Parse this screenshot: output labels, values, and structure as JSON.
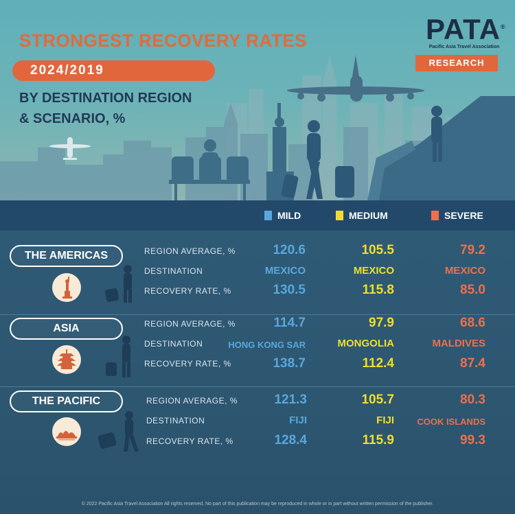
{
  "title": "STRONGEST RECOVERY RATES",
  "period": "2024/2019",
  "subtitle_line1": "BY DESTINATION REGION",
  "subtitle_line2": "& SCENARIO, %",
  "logo": {
    "word": "PATA",
    "registered": "®",
    "org": "Pacific Asia Travel Association",
    "badge": "RESEARCH"
  },
  "legend": {
    "mild": "MILD",
    "medium": "MEDIUM",
    "severe": "SEVERE"
  },
  "colors": {
    "mild": "#59a7dc",
    "medium": "#f2de2a",
    "severe": "#ef6f4c",
    "accent": "#e2663c"
  },
  "row_labels": {
    "avg": "REGION AVERAGE, %",
    "dest": "DESTINATION",
    "rate": "RECOVERY RATE, %"
  },
  "regions": [
    {
      "name": "THE AMERICAS",
      "icon": "statue-of-liberty-icon",
      "mild": {
        "avg": "120.6",
        "dest": "MEXICO",
        "rate": "130.5"
      },
      "medium": {
        "avg": "105.5",
        "dest": "MEXICO",
        "rate": "115.8"
      },
      "severe": {
        "avg": "79.2",
        "dest": "MEXICO",
        "rate": "85.0"
      }
    },
    {
      "name": "ASIA",
      "icon": "pagoda-icon",
      "mild": {
        "avg": "114.7",
        "dest": "HONG KONG SAR",
        "rate": "138.7"
      },
      "medium": {
        "avg": "97.9",
        "dest": "MONGOLIA",
        "rate": "112.4"
      },
      "severe": {
        "avg": "68.6",
        "dest": "MALDIVES",
        "rate": "87.4"
      }
    },
    {
      "name": "THE PACIFIC",
      "icon": "opera-house-icon",
      "mild": {
        "avg": "121.3",
        "dest": "FIJI",
        "rate": "128.4"
      },
      "medium": {
        "avg": "105.7",
        "dest": "FIJI",
        "rate": "115.9"
      },
      "severe": {
        "avg": "80.3",
        "dest": "COOK ISLANDS",
        "rate": "99.3"
      }
    }
  ],
  "footer": "© 2022 Pacific Asia Travel Association All rights reserved. No part of this publication may be reproduced in whole or in part without written permission of the publisher."
}
